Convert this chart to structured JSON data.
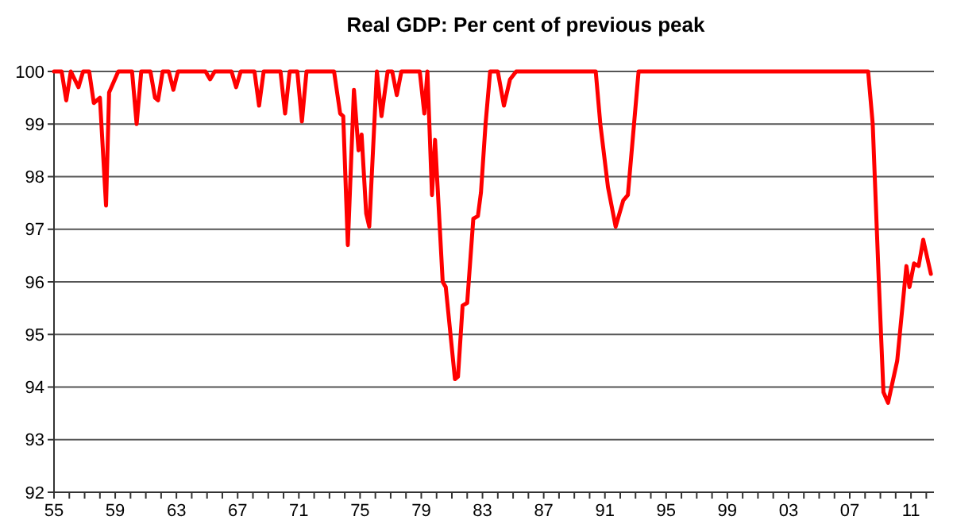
{
  "chart_data": {
    "type": "line",
    "title": "Real GDP: Per cent of previous peak",
    "xlim": [
      1955,
      2012.5
    ],
    "xticks": [
      {
        "value": 1955,
        "label": "55"
      },
      {
        "value": 1956,
        "label": null
      },
      {
        "value": 1957,
        "label": null
      },
      {
        "value": 1958,
        "label": null
      },
      {
        "value": 1959,
        "label": "59"
      },
      {
        "value": 1960,
        "label": null
      },
      {
        "value": 1961,
        "label": null
      },
      {
        "value": 1962,
        "label": null
      },
      {
        "value": 1963,
        "label": "63"
      },
      {
        "value": 1964,
        "label": null
      },
      {
        "value": 1965,
        "label": null
      },
      {
        "value": 1966,
        "label": null
      },
      {
        "value": 1967,
        "label": "67"
      },
      {
        "value": 1968,
        "label": null
      },
      {
        "value": 1969,
        "label": null
      },
      {
        "value": 1970,
        "label": null
      },
      {
        "value": 1971,
        "label": "71"
      },
      {
        "value": 1972,
        "label": null
      },
      {
        "value": 1973,
        "label": null
      },
      {
        "value": 1974,
        "label": null
      },
      {
        "value": 1975,
        "label": "75"
      },
      {
        "value": 1976,
        "label": null
      },
      {
        "value": 1977,
        "label": null
      },
      {
        "value": 1978,
        "label": null
      },
      {
        "value": 1979,
        "label": "79"
      },
      {
        "value": 1980,
        "label": null
      },
      {
        "value": 1981,
        "label": null
      },
      {
        "value": 1982,
        "label": null
      },
      {
        "value": 1983,
        "label": "83"
      },
      {
        "value": 1984,
        "label": null
      },
      {
        "value": 1985,
        "label": null
      },
      {
        "value": 1986,
        "label": null
      },
      {
        "value": 1987,
        "label": "87"
      },
      {
        "value": 1988,
        "label": null
      },
      {
        "value": 1989,
        "label": null
      },
      {
        "value": 1990,
        "label": null
      },
      {
        "value": 1991,
        "label": "91"
      },
      {
        "value": 1992,
        "label": null
      },
      {
        "value": 1993,
        "label": null
      },
      {
        "value": 1994,
        "label": null
      },
      {
        "value": 1995,
        "label": "95"
      },
      {
        "value": 1996,
        "label": null
      },
      {
        "value": 1997,
        "label": null
      },
      {
        "value": 1998,
        "label": null
      },
      {
        "value": 1999,
        "label": "99"
      },
      {
        "value": 2000,
        "label": null
      },
      {
        "value": 2001,
        "label": null
      },
      {
        "value": 2002,
        "label": null
      },
      {
        "value": 2003,
        "label": "03"
      },
      {
        "value": 2004,
        "label": null
      },
      {
        "value": 2005,
        "label": null
      },
      {
        "value": 2006,
        "label": null
      },
      {
        "value": 2007,
        "label": "07"
      },
      {
        "value": 2008,
        "label": null
      },
      {
        "value": 2009,
        "label": null
      },
      {
        "value": 2010,
        "label": null
      },
      {
        "value": 2011,
        "label": "11"
      },
      {
        "value": 2012,
        "label": null
      }
    ],
    "ylim": [
      92,
      100
    ],
    "yticks": [
      92,
      93,
      94,
      95,
      96,
      97,
      98,
      99,
      100
    ],
    "grid": "y",
    "series": [
      {
        "color": "#ff0000",
        "x": [
          1955.0,
          1955.5,
          1955.8,
          1956.1,
          1956.6,
          1956.9,
          1957.3,
          1957.6,
          1958.0,
          1958.4,
          1958.6,
          1958.9,
          1959.2,
          1960.1,
          1960.4,
          1960.7,
          1961.3,
          1961.6,
          1961.8,
          1962.1,
          1962.5,
          1962.8,
          1963.1,
          1964.9,
          1965.2,
          1965.5,
          1966.6,
          1966.9,
          1967.2,
          1968.1,
          1968.4,
          1968.7,
          1969.8,
          1970.1,
          1970.4,
          1970.9,
          1971.2,
          1971.5,
          1973.3,
          1973.7,
          1973.9,
          1974.2,
          1974.6,
          1974.9,
          1975.1,
          1975.4,
          1975.6,
          1976.1,
          1976.4,
          1976.8,
          1977.1,
          1977.4,
          1977.7,
          1978.9,
          1979.2,
          1979.4,
          1979.7,
          1979.9,
          1980.4,
          1980.6,
          1981.2,
          1981.4,
          1981.7,
          1982.0,
          1982.4,
          1982.7,
          1982.9,
          1983.2,
          1983.5,
          1984.0,
          1984.4,
          1984.8,
          1985.2,
          1990.4,
          1990.7,
          1991.2,
          1991.7,
          1992.2,
          1992.5,
          1993.2,
          2008.2,
          2008.5,
          2008.9,
          2009.2,
          2009.5,
          2010.1,
          2010.7,
          2010.9,
          2011.2,
          2011.5,
          2011.8,
          2012.3
        ],
        "values": [
          100,
          100,
          99.45,
          100,
          99.7,
          100,
          100,
          99.4,
          99.5,
          97.45,
          99.6,
          99.8,
          100,
          100,
          99.0,
          100,
          100,
          99.5,
          99.45,
          100,
          100,
          99.65,
          100,
          100,
          99.85,
          100,
          100,
          99.7,
          100,
          100,
          99.35,
          100,
          100,
          99.2,
          100,
          100,
          99.05,
          100,
          100,
          99.2,
          99.15,
          96.7,
          99.65,
          98.5,
          98.8,
          97.3,
          97.05,
          100,
          99.15,
          100,
          100,
          99.55,
          100,
          100,
          99.2,
          100,
          97.65,
          98.7,
          96.0,
          95.9,
          94.15,
          94.2,
          95.55,
          95.6,
          97.2,
          97.25,
          97.7,
          99.0,
          100,
          100,
          99.35,
          99.85,
          100,
          100,
          99.0,
          97.8,
          97.05,
          97.55,
          97.65,
          100,
          100,
          99.0,
          96.0,
          93.9,
          93.7,
          94.5,
          96.3,
          95.9,
          96.35,
          96.3,
          96.8,
          96.15
        ]
      }
    ]
  }
}
